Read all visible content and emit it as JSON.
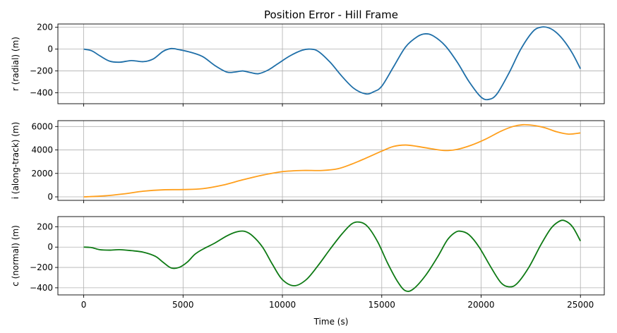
{
  "chart_data": {
    "type": "line",
    "title": "Position Error - Hill Frame",
    "xlabel": "Time (s)",
    "xlim": [
      -1300,
      26200
    ],
    "xticks": [
      0,
      5000,
      10000,
      15000,
      20000,
      25000
    ],
    "xtick_labels": [
      "0",
      "5000",
      "10000",
      "15000",
      "20000",
      "25000"
    ],
    "grid": true,
    "shared_x": true,
    "panels": [
      {
        "ylabel": "r (radial) (m)",
        "ylim": [
          -500,
          230
        ],
        "yticks": [
          200,
          0,
          -200,
          -400
        ],
        "ytick_labels": [
          "200",
          "0",
          "−200",
          "−400"
        ],
        "color": "#1f6fa8",
        "series": {
          "x": [
            0,
            400,
            800,
            1300,
            1800,
            2400,
            3000,
            3500,
            4000,
            4400,
            4800,
            5400,
            6000,
            6600,
            7200,
            7600,
            8000,
            8400,
            8800,
            9300,
            9800,
            10400,
            11000,
            11400,
            11800,
            12400,
            13000,
            13600,
            14200,
            14600,
            15000,
            15600,
            16200,
            16800,
            17200,
            17600,
            18200,
            18800,
            19400,
            20000,
            20400,
            20800,
            21400,
            22000,
            22600,
            23000,
            23400,
            23800,
            24200,
            24600,
            25000
          ],
          "y": [
            0,
            -15,
            -60,
            -110,
            -120,
            -105,
            -115,
            -90,
            -20,
            5,
            -5,
            -30,
            -70,
            -150,
            -210,
            -210,
            -200,
            -215,
            -225,
            -190,
            -130,
            -60,
            -10,
            0,
            -20,
            -120,
            -250,
            -360,
            -410,
            -390,
            -340,
            -160,
            20,
            115,
            140,
            120,
            30,
            -120,
            -300,
            -440,
            -460,
            -410,
            -220,
            0,
            160,
            200,
            195,
            150,
            70,
            -40,
            -180
          ]
        }
      },
      {
        "ylabel": "i (along-track) (m)",
        "ylim": [
          -300,
          6500
        ],
        "yticks": [
          6000,
          4000,
          2000,
          0
        ],
        "ytick_labels": [
          "6000",
          "4000",
          "2000",
          "0"
        ],
        "color": "#ff9f1c",
        "series": {
          "x": [
            0,
            1000,
            2000,
            3000,
            4000,
            5000,
            6000,
            7000,
            8000,
            9000,
            10000,
            11000,
            12000,
            12800,
            13500,
            14200,
            15000,
            15600,
            16200,
            16800,
            17500,
            18200,
            18800,
            19500,
            20200,
            21000,
            21600,
            22100,
            22600,
            23200,
            23800,
            24400,
            25000
          ],
          "y": [
            0,
            80,
            250,
            480,
            600,
            620,
            700,
            1000,
            1450,
            1850,
            2150,
            2250,
            2250,
            2400,
            2800,
            3300,
            3900,
            4300,
            4420,
            4300,
            4100,
            3950,
            4050,
            4400,
            4900,
            5600,
            6000,
            6150,
            6100,
            5900,
            5550,
            5350,
            5450
          ]
        }
      },
      {
        "ylabel": "c (normal) (m)",
        "ylim": [
          -470,
          300
        ],
        "yticks": [
          200,
          0,
          -200,
          -400
        ],
        "ytick_labels": [
          "200",
          "0",
          "−200",
          "−400"
        ],
        "color": "#0e7a14",
        "series": {
          "x": [
            0,
            400,
            800,
            1300,
            1800,
            2400,
            3000,
            3600,
            4000,
            4400,
            4800,
            5200,
            5600,
            6000,
            6600,
            7200,
            7700,
            8100,
            8500,
            9000,
            9500,
            10000,
            10600,
            11200,
            11800,
            12400,
            13000,
            13500,
            13900,
            14300,
            14800,
            15300,
            15800,
            16200,
            16600,
            17200,
            17800,
            18300,
            18700,
            19000,
            19400,
            19900,
            20500,
            21000,
            21400,
            21800,
            22400,
            23000,
            23500,
            23900,
            24200,
            24600,
            25000
          ],
          "y": [
            0,
            -5,
            -25,
            -30,
            -25,
            -35,
            -50,
            -90,
            -150,
            -205,
            -200,
            -150,
            -70,
            -20,
            40,
            110,
            150,
            155,
            110,
            0,
            -170,
            -320,
            -380,
            -320,
            -180,
            -20,
            130,
            230,
            245,
            200,
            50,
            -160,
            -340,
            -430,
            -410,
            -280,
            -100,
            70,
            145,
            155,
            120,
            0,
            -200,
            -350,
            -390,
            -360,
            -200,
            20,
            180,
            250,
            260,
            200,
            60
          ]
        }
      }
    ]
  }
}
